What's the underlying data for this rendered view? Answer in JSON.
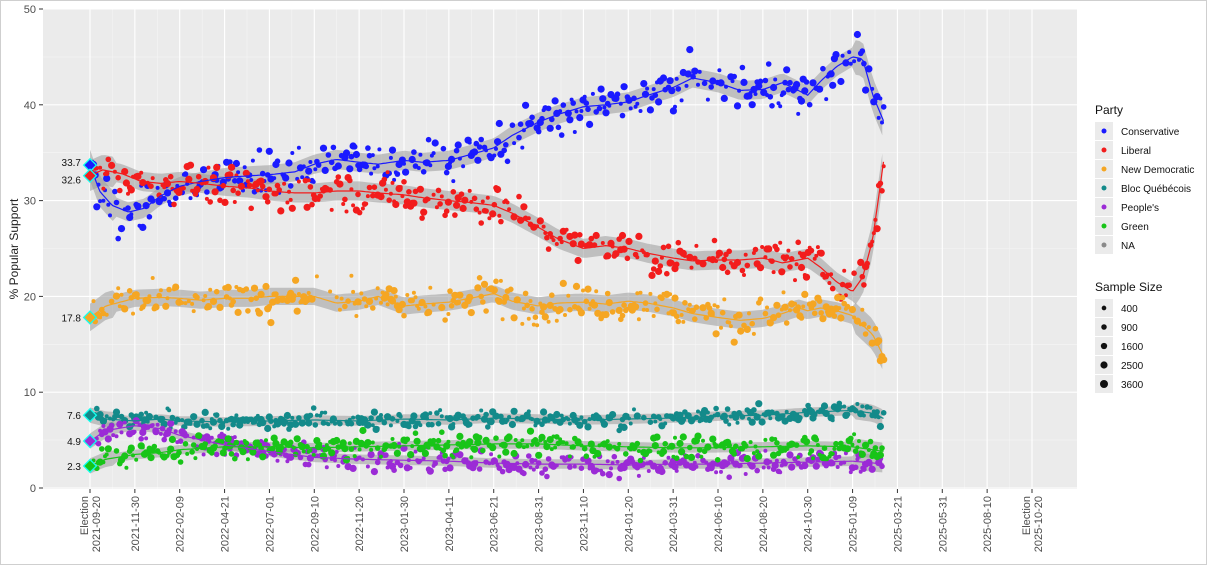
{
  "chart_data": {
    "type": "scatter",
    "ylabel": "% Popular Support",
    "ylim": [
      0,
      50
    ],
    "y_ticks": [
      0,
      10,
      20,
      30,
      40,
      50
    ],
    "x_ticks": [
      {
        "date": "2021-09-20",
        "label": "Election\n2021-09-20"
      },
      {
        "date": "2021-11-30",
        "label": "2021-11-30"
      },
      {
        "date": "2022-02-09",
        "label": "2022-02-09"
      },
      {
        "date": "2022-04-21",
        "label": "2022-04-21"
      },
      {
        "date": "2022-07-01",
        "label": "2022-07-01"
      },
      {
        "date": "2022-09-10",
        "label": "2022-09-10"
      },
      {
        "date": "2022-11-20",
        "label": "2022-11-20"
      },
      {
        "date": "2023-01-30",
        "label": "2023-01-30"
      },
      {
        "date": "2023-04-11",
        "label": "2023-04-11"
      },
      {
        "date": "2023-06-21",
        "label": "2023-06-21"
      },
      {
        "date": "2023-08-31",
        "label": "2023-08-31"
      },
      {
        "date": "2023-11-10",
        "label": "2023-11-10"
      },
      {
        "date": "2024-01-20",
        "label": "2024-01-20"
      },
      {
        "date": "2024-03-31",
        "label": "2024-03-31"
      },
      {
        "date": "2024-06-10",
        "label": "2024-06-10"
      },
      {
        "date": "2024-08-20",
        "label": "2024-08-20"
      },
      {
        "date": "2024-10-30",
        "label": "2024-10-30"
      },
      {
        "date": "2025-01-09",
        "label": "2025-01-09"
      },
      {
        "date": "2025-03-21",
        "label": "2025-03-21"
      },
      {
        "date": "2025-05-31",
        "label": "2025-05-31"
      },
      {
        "date": "2025-08-10",
        "label": "2025-08-10"
      },
      {
        "date": "2025-10-20",
        "label": "Election\n2025-10-20"
      }
    ],
    "grid": true,
    "legend_position": "right",
    "legend_title": "Party",
    "size_legend_title": "Sample Size",
    "size_legend": [
      400,
      900,
      1600,
      2500,
      3600
    ],
    "election_results": [
      {
        "party": "Conservative",
        "value": 33.7,
        "label": "33.7"
      },
      {
        "party": "Liberal",
        "value": 32.6,
        "label": "32.6"
      },
      {
        "party": "New Democratic",
        "value": 17.8,
        "label": "17.8"
      },
      {
        "party": "Bloc Québécois",
        "value": 7.6,
        "label": "7.6"
      },
      {
        "party": "People's",
        "value": 4.9,
        "label": "4.9"
      },
      {
        "party": "Green",
        "value": 2.3,
        "label": "2.3"
      }
    ],
    "series": [
      {
        "name": "Conservative",
        "color": "#1a1aff",
        "trend": [
          [
            "2021-09-20",
            33.7
          ],
          [
            "2021-10-05",
            31.0
          ],
          [
            "2021-10-25",
            29.5
          ],
          [
            "2021-11-20",
            28.8
          ],
          [
            "2021-12-15",
            29.2
          ],
          [
            "2022-01-10",
            30.5
          ],
          [
            "2022-02-09",
            31.5
          ],
          [
            "2022-03-15",
            32.0
          ],
          [
            "2022-04-21",
            32.4
          ],
          [
            "2022-06-01",
            32.6
          ],
          [
            "2022-07-01",
            32.7
          ],
          [
            "2022-08-10",
            33.0
          ],
          [
            "2022-09-10",
            33.8
          ],
          [
            "2022-10-15",
            34.3
          ],
          [
            "2022-11-20",
            34.0
          ],
          [
            "2022-12-20",
            33.8
          ],
          [
            "2023-01-30",
            34.2
          ],
          [
            "2023-03-01",
            34.0
          ],
          [
            "2023-04-11",
            34.2
          ],
          [
            "2023-05-15",
            34.8
          ],
          [
            "2023-06-21",
            35.5
          ],
          [
            "2023-07-20",
            36.8
          ],
          [
            "2023-08-31",
            38.2
          ],
          [
            "2023-10-01",
            39.0
          ],
          [
            "2023-11-10",
            39.8
          ],
          [
            "2023-12-15",
            40.0
          ],
          [
            "2024-01-20",
            40.3
          ],
          [
            "2024-02-20",
            41.0
          ],
          [
            "2024-03-31",
            41.8
          ],
          [
            "2024-05-01",
            42.8
          ],
          [
            "2024-06-10",
            42.3
          ],
          [
            "2024-07-15",
            41.5
          ],
          [
            "2024-08-20",
            41.6
          ],
          [
            "2024-09-20",
            42.3
          ],
          [
            "2024-10-15",
            41.5
          ],
          [
            "2024-10-30",
            41.0
          ],
          [
            "2024-11-20",
            42.5
          ],
          [
            "2024-12-15",
            44.0
          ],
          [
            "2025-01-09",
            45.0
          ],
          [
            "2025-01-25",
            44.8
          ],
          [
            "2025-02-10",
            41.0
          ],
          [
            "2025-03-01",
            38.0
          ]
        ]
      },
      {
        "name": "Liberal",
        "color": "#f21c1c",
        "trend": [
          [
            "2021-09-20",
            32.6
          ],
          [
            "2021-10-10",
            33.2
          ],
          [
            "2021-11-10",
            32.8
          ],
          [
            "2021-12-10",
            32.0
          ],
          [
            "2022-01-10",
            31.8
          ],
          [
            "2022-02-09",
            32.0
          ],
          [
            "2022-03-15",
            31.8
          ],
          [
            "2022-04-21",
            31.5
          ],
          [
            "2022-06-01",
            31.3
          ],
          [
            "2022-07-01",
            31.0
          ],
          [
            "2022-08-10",
            30.8
          ],
          [
            "2022-09-10",
            30.8
          ],
          [
            "2022-10-15",
            31.0
          ],
          [
            "2022-11-20",
            31.0
          ],
          [
            "2022-12-20",
            30.8
          ],
          [
            "2023-01-30",
            30.6
          ],
          [
            "2023-03-01",
            30.3
          ],
          [
            "2023-04-11",
            30.0
          ],
          [
            "2023-05-15",
            29.8
          ],
          [
            "2023-06-21",
            29.5
          ],
          [
            "2023-07-20",
            28.7
          ],
          [
            "2023-08-31",
            27.2
          ],
          [
            "2023-10-01",
            26.0
          ],
          [
            "2023-11-10",
            25.0
          ],
          [
            "2023-12-15",
            25.3
          ],
          [
            "2024-01-20",
            25.0
          ],
          [
            "2024-02-20",
            24.5
          ],
          [
            "2024-03-31",
            24.0
          ],
          [
            "2024-05-01",
            23.7
          ],
          [
            "2024-06-10",
            23.8
          ],
          [
            "2024-07-15",
            23.8
          ],
          [
            "2024-08-20",
            24.0
          ],
          [
            "2024-09-20",
            23.5
          ],
          [
            "2024-10-15",
            23.8
          ],
          [
            "2024-10-30",
            24.0
          ],
          [
            "2024-11-20",
            23.0
          ],
          [
            "2024-12-15",
            21.5
          ],
          [
            "2025-01-09",
            20.5
          ],
          [
            "2025-01-25",
            22.0
          ],
          [
            "2025-02-10",
            26.0
          ],
          [
            "2025-03-01",
            35.0
          ]
        ]
      },
      {
        "name": "New Democratic",
        "color": "#f5a623",
        "trend": [
          [
            "2021-09-20",
            17.8
          ],
          [
            "2021-10-15",
            19.0
          ],
          [
            "2021-11-30",
            19.8
          ],
          [
            "2022-01-10",
            19.9
          ],
          [
            "2022-02-09",
            19.8
          ],
          [
            "2022-03-15",
            19.6
          ],
          [
            "2022-04-21",
            19.8
          ],
          [
            "2022-06-01",
            19.8
          ],
          [
            "2022-07-01",
            20.0
          ],
          [
            "2022-08-10",
            20.0
          ],
          [
            "2022-09-10",
            20.0
          ],
          [
            "2022-10-15",
            19.3
          ],
          [
            "2022-11-20",
            19.5
          ],
          [
            "2022-12-20",
            20.0
          ],
          [
            "2023-01-30",
            19.0
          ],
          [
            "2023-03-01",
            19.2
          ],
          [
            "2023-04-11",
            19.4
          ],
          [
            "2023-05-15",
            19.8
          ],
          [
            "2023-06-21",
            20.3
          ],
          [
            "2023-07-20",
            19.5
          ],
          [
            "2023-08-31",
            19.0
          ],
          [
            "2023-10-01",
            19.3
          ],
          [
            "2023-11-10",
            19.4
          ],
          [
            "2023-12-15",
            19.2
          ],
          [
            "2024-01-20",
            19.5
          ],
          [
            "2024-02-20",
            19.3
          ],
          [
            "2024-03-31",
            18.8
          ],
          [
            "2024-05-01",
            18.2
          ],
          [
            "2024-06-10",
            17.8
          ],
          [
            "2024-07-15",
            17.5
          ],
          [
            "2024-08-20",
            17.7
          ],
          [
            "2024-09-20",
            18.2
          ],
          [
            "2024-10-15",
            18.8
          ],
          [
            "2024-10-30",
            18.5
          ],
          [
            "2024-11-20",
            18.8
          ],
          [
            "2024-12-15",
            18.5
          ],
          [
            "2025-01-09",
            18.0
          ],
          [
            "2025-01-25",
            17.0
          ],
          [
            "2025-02-10",
            16.0
          ],
          [
            "2025-03-01",
            13.5
          ]
        ]
      },
      {
        "name": "Bloc Québécois",
        "color": "#138a8a",
        "trend": [
          [
            "2021-09-20",
            7.6
          ],
          [
            "2021-10-15",
            7.2
          ],
          [
            "2021-11-30",
            7.0
          ],
          [
            "2022-01-10",
            7.2
          ],
          [
            "2022-02-09",
            7.0
          ],
          [
            "2022-04-21",
            6.9
          ],
          [
            "2022-07-01",
            7.0
          ],
          [
            "2022-09-10",
            7.1
          ],
          [
            "2022-11-20",
            7.0
          ],
          [
            "2023-01-30",
            7.2
          ],
          [
            "2023-04-11",
            7.1
          ],
          [
            "2023-06-21",
            7.3
          ],
          [
            "2023-08-31",
            7.2
          ],
          [
            "2023-11-10",
            7.1
          ],
          [
            "2024-01-20",
            7.2
          ],
          [
            "2024-03-31",
            7.3
          ],
          [
            "2024-06-10",
            7.5
          ],
          [
            "2024-08-20",
            7.6
          ],
          [
            "2024-10-30",
            7.9
          ],
          [
            "2025-01-09",
            8.1
          ],
          [
            "2025-02-10",
            7.8
          ],
          [
            "2025-03-01",
            7.2
          ]
        ]
      },
      {
        "name": "People's",
        "color": "#9b2bd6",
        "trend": [
          [
            "2021-09-20",
            4.9
          ],
          [
            "2021-10-15",
            6.0
          ],
          [
            "2021-11-30",
            6.5
          ],
          [
            "2022-01-10",
            6.2
          ],
          [
            "2022-02-09",
            5.5
          ],
          [
            "2022-04-21",
            4.5
          ],
          [
            "2022-07-01",
            3.8
          ],
          [
            "2022-09-10",
            3.2
          ],
          [
            "2022-11-20",
            3.0
          ],
          [
            "2023-01-30",
            2.9
          ],
          [
            "2023-04-11",
            2.8
          ],
          [
            "2023-06-21",
            2.6
          ],
          [
            "2023-08-31",
            2.5
          ],
          [
            "2023-11-10",
            2.5
          ],
          [
            "2024-01-20",
            2.4
          ],
          [
            "2024-03-31",
            2.5
          ],
          [
            "2024-06-10",
            2.5
          ],
          [
            "2024-08-20",
            2.6
          ],
          [
            "2024-10-30",
            2.7
          ],
          [
            "2025-01-09",
            2.8
          ],
          [
            "2025-03-01",
            2.5
          ]
        ]
      },
      {
        "name": "Green",
        "color": "#18c418",
        "trend": [
          [
            "2021-09-20",
            2.3
          ],
          [
            "2021-10-15",
            3.0
          ],
          [
            "2021-11-30",
            3.5
          ],
          [
            "2022-01-10",
            3.7
          ],
          [
            "2022-02-09",
            4.0
          ],
          [
            "2022-04-21",
            4.3
          ],
          [
            "2022-07-01",
            4.3
          ],
          [
            "2022-09-10",
            4.2
          ],
          [
            "2022-11-20",
            4.3
          ],
          [
            "2023-01-30",
            4.4
          ],
          [
            "2023-04-11",
            4.5
          ],
          [
            "2023-06-21",
            4.6
          ],
          [
            "2023-08-31",
            4.6
          ],
          [
            "2023-11-10",
            4.4
          ],
          [
            "2024-01-20",
            4.3
          ],
          [
            "2024-03-31",
            4.2
          ],
          [
            "2024-06-10",
            4.2
          ],
          [
            "2024-08-20",
            4.3
          ],
          [
            "2024-10-30",
            4.4
          ],
          [
            "2025-01-09",
            4.3
          ],
          [
            "2025-03-01",
            3.8
          ]
        ]
      },
      {
        "name": "NA",
        "color": "#8a8a8a",
        "trend": []
      }
    ]
  }
}
